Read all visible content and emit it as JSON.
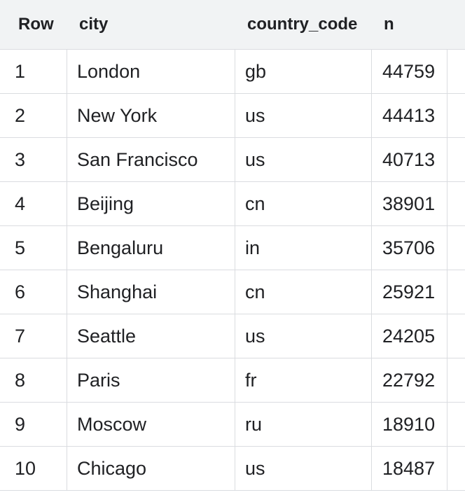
{
  "table": {
    "columns": [
      "Row",
      "city",
      "country_code",
      "n"
    ],
    "rows": [
      {
        "row": "1",
        "city": "London",
        "country_code": "gb",
        "n": "44759"
      },
      {
        "row": "2",
        "city": "New York",
        "country_code": "us",
        "n": "44413"
      },
      {
        "row": "3",
        "city": "San Francisco",
        "country_code": "us",
        "n": "40713"
      },
      {
        "row": "4",
        "city": "Beijing",
        "country_code": "cn",
        "n": "38901"
      },
      {
        "row": "5",
        "city": "Bengaluru",
        "country_code": "in",
        "n": "35706"
      },
      {
        "row": "6",
        "city": "Shanghai",
        "country_code": "cn",
        "n": "25921"
      },
      {
        "row": "7",
        "city": "Seattle",
        "country_code": "us",
        "n": "24205"
      },
      {
        "row": "8",
        "city": "Paris",
        "country_code": "fr",
        "n": "22792"
      },
      {
        "row": "9",
        "city": "Moscow",
        "country_code": "ru",
        "n": "18910"
      },
      {
        "row": "10",
        "city": "Chicago",
        "country_code": "us",
        "n": "18487"
      }
    ]
  }
}
